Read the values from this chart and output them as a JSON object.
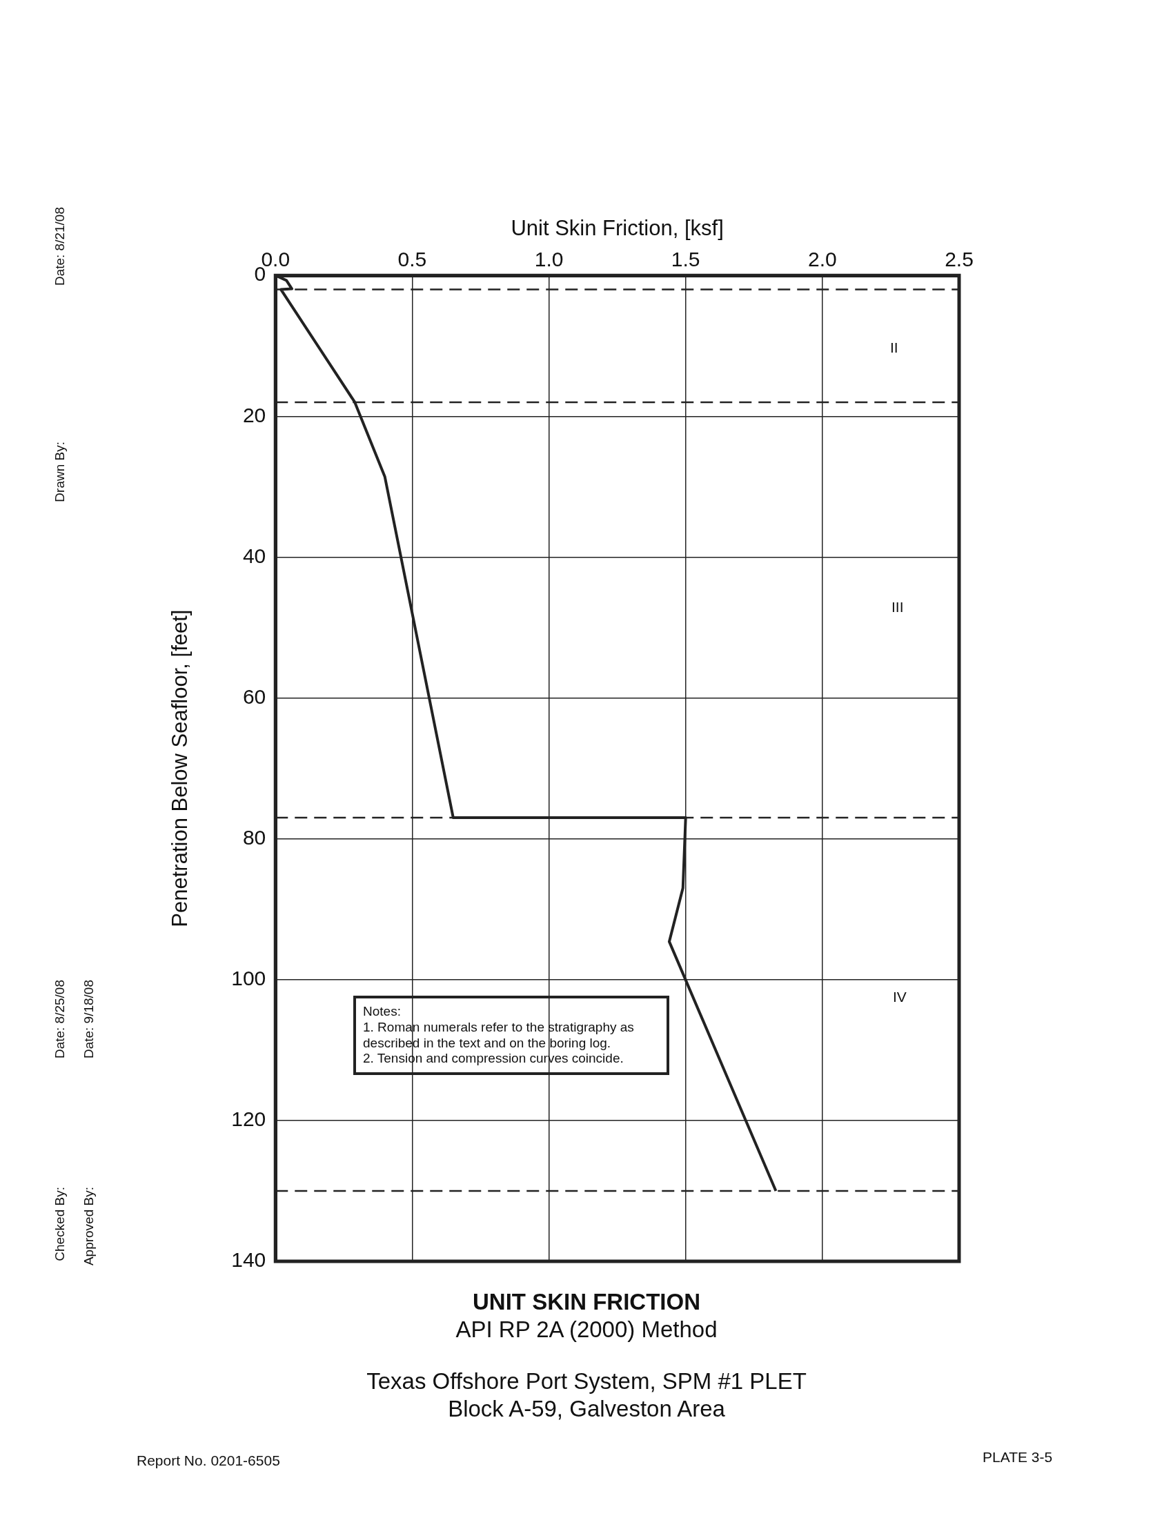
{
  "chart_data": {
    "type": "line",
    "title": "UNIT SKIN FRICTION",
    "subtitle": "API RP 2A (2000) Method",
    "xlabel": "Unit Skin Friction, [ksf]",
    "ylabel": "Penetration Below Seafloor, [feet]",
    "x": [
      0,
      0.04,
      0.06,
      0.02,
      0.29,
      0.4,
      0.65,
      1.5,
      1.49,
      1.44,
      1.83
    ],
    "series": [
      {
        "color": "#222222",
        "values": [
          0,
          0.7,
          1.9,
          2,
          18,
          28.6,
          77,
          77,
          87,
          94.6,
          130
        ]
      }
    ],
    "xlim": [
      0,
      2.5
    ],
    "xticks": [
      {
        "value": 0,
        "label": "0.0"
      },
      0.5,
      {
        "value": 1,
        "label": "1.0"
      },
      1.5,
      {
        "value": 2,
        "label": "2.0"
      },
      2.5
    ],
    "ylim": [
      140,
      0
    ],
    "yticks": [
      0,
      20,
      40,
      60,
      80,
      100,
      120,
      140
    ],
    "grid": true,
    "legend": false,
    "marker": "none",
    "line_style": "solid",
    "ref_lines": [
      {
        "axis": "y",
        "value": 2,
        "color": "#222222",
        "line_style": "dashed"
      },
      {
        "axis": "y",
        "value": 18,
        "color": "#222222",
        "line_style": "dashed"
      },
      {
        "axis": "y",
        "value": 77,
        "color": "#222222",
        "line_style": "dashed"
      },
      {
        "axis": "y",
        "value": 130,
        "color": "#222222",
        "line_style": "dashed"
      }
    ],
    "annotations": [
      "II",
      "III",
      "IV",
      "Notes:\n1. Roman numerals refer to the stratigraphy as described in the text and on the boring log.\n2. Tension and compression curves coincide.",
      "Texas Offshore Port System, SPM #1 PLET\nBlock A-59, Galveston Area",
      "Report No. 0201-6505",
      "PLATE 3-5",
      "Drawn By:",
      "Date: 8/21/08",
      "Checked By:",
      "Date: 8/25/08",
      "Approved By:",
      "Date: 9/18/08"
    ]
  }
}
